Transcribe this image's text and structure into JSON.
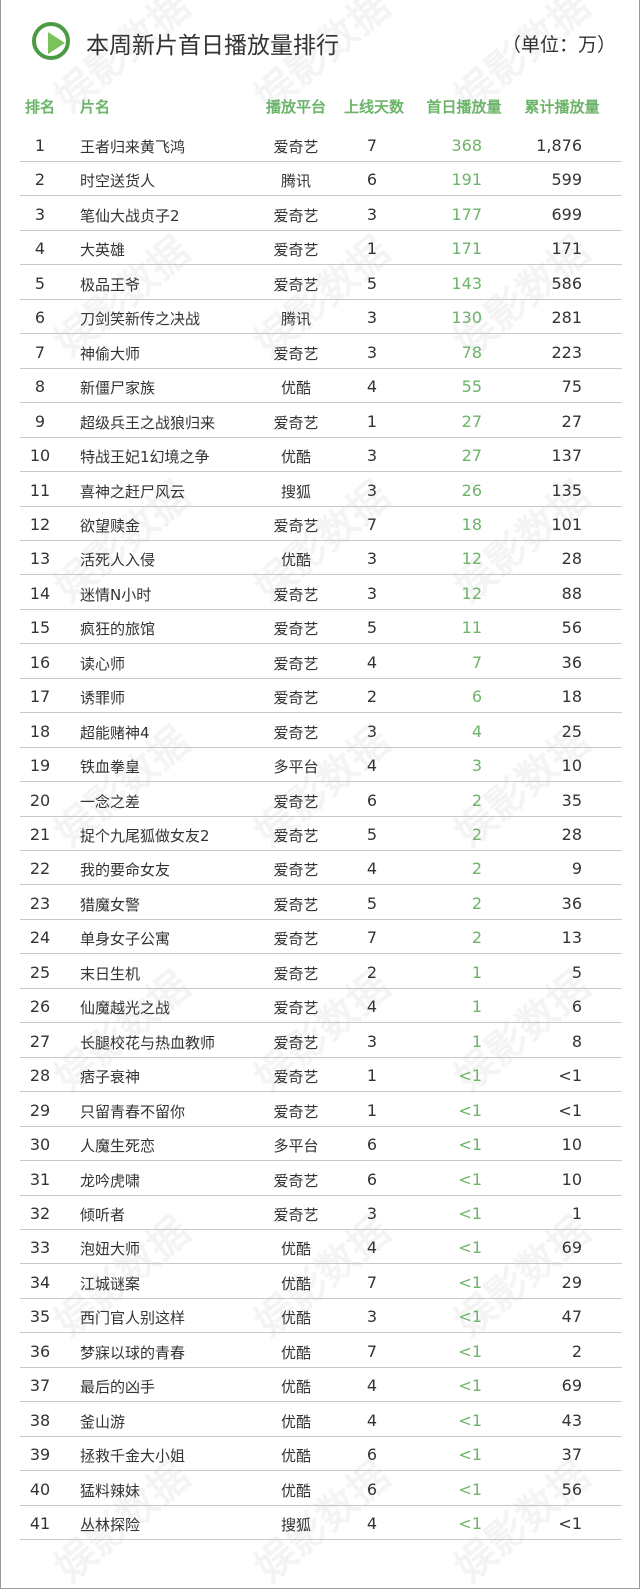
{
  "title": "本周新片首日播放量排行",
  "unit": "（单位：万）",
  "watermark": "娱影数据",
  "colors": {
    "accent": "#6cb46a",
    "icon": "#4c9a44"
  },
  "icon": "play-circle-icon",
  "headers": [
    "排名",
    "片名",
    "播放平台",
    "上线天数",
    "首日播放量",
    "累计播放量"
  ],
  "rows": [
    [
      "1",
      "王者归来黄飞鸿",
      "爱奇艺",
      "7",
      "368",
      "1,876"
    ],
    [
      "2",
      "时空送货人",
      "腾讯",
      "6",
      "191",
      "599"
    ],
    [
      "3",
      "笔仙大战贞子2",
      "爱奇艺",
      "3",
      "177",
      "699"
    ],
    [
      "4",
      "大英雄",
      "爱奇艺",
      "1",
      "171",
      "171"
    ],
    [
      "5",
      "极品王爷",
      "爱奇艺",
      "5",
      "143",
      "586"
    ],
    [
      "6",
      "刀剑笑新传之决战",
      "腾讯",
      "3",
      "130",
      "281"
    ],
    [
      "7",
      "神偷大师",
      "爱奇艺",
      "3",
      "78",
      "223"
    ],
    [
      "8",
      "新僵尸家族",
      "优酷",
      "4",
      "55",
      "75"
    ],
    [
      "9",
      "超级兵王之战狼归来",
      "爱奇艺",
      "1",
      "27",
      "27"
    ],
    [
      "10",
      "特战王妃1幻境之争",
      "优酷",
      "3",
      "27",
      "137"
    ],
    [
      "11",
      "喜神之赶尸风云",
      "搜狐",
      "3",
      "26",
      "135"
    ],
    [
      "12",
      "欲望赎金",
      "爱奇艺",
      "7",
      "18",
      "101"
    ],
    [
      "13",
      "活死人入侵",
      "优酷",
      "3",
      "12",
      "28"
    ],
    [
      "14",
      "迷情N小时",
      "爱奇艺",
      "3",
      "12",
      "88"
    ],
    [
      "15",
      "疯狂的旅馆",
      "爱奇艺",
      "5",
      "11",
      "56"
    ],
    [
      "16",
      "读心师",
      "爱奇艺",
      "4",
      "7",
      "36"
    ],
    [
      "17",
      "诱罪师",
      "爱奇艺",
      "2",
      "6",
      "18"
    ],
    [
      "18",
      "超能赌神4",
      "爱奇艺",
      "3",
      "4",
      "25"
    ],
    [
      "19",
      "铁血拳皇",
      "多平台",
      "4",
      "3",
      "10"
    ],
    [
      "20",
      "一念之差",
      "爱奇艺",
      "6",
      "2",
      "35"
    ],
    [
      "21",
      "捉个九尾狐做女友2",
      "爱奇艺",
      "5",
      "2",
      "28"
    ],
    [
      "22",
      "我的要命女友",
      "爱奇艺",
      "4",
      "2",
      "9"
    ],
    [
      "23",
      "猎魔女警",
      "爱奇艺",
      "5",
      "2",
      "36"
    ],
    [
      "24",
      "单身女子公寓",
      "爱奇艺",
      "7",
      "2",
      "13"
    ],
    [
      "25",
      "末日生机",
      "爱奇艺",
      "2",
      "1",
      "5"
    ],
    [
      "26",
      "仙魔越光之战",
      "爱奇艺",
      "4",
      "1",
      "6"
    ],
    [
      "27",
      "长腿校花与热血教师",
      "爱奇艺",
      "3",
      "1",
      "8"
    ],
    [
      "28",
      "痞子衰神",
      "爱奇艺",
      "1",
      "<1",
      "<1"
    ],
    [
      "29",
      "只留青春不留你",
      "爱奇艺",
      "1",
      "<1",
      "<1"
    ],
    [
      "30",
      "人魔生死恋",
      "多平台",
      "6",
      "<1",
      "10"
    ],
    [
      "31",
      "龙吟虎啸",
      "爱奇艺",
      "6",
      "<1",
      "10"
    ],
    [
      "32",
      "倾听者",
      "爱奇艺",
      "3",
      "<1",
      "1"
    ],
    [
      "33",
      "泡妞大师",
      "优酷",
      "4",
      "<1",
      "69"
    ],
    [
      "34",
      "江城谜案",
      "优酷",
      "7",
      "<1",
      "29"
    ],
    [
      "35",
      "西门官人别这样",
      "优酷",
      "3",
      "<1",
      "47"
    ],
    [
      "36",
      "梦寐以球的青春",
      "优酷",
      "7",
      "<1",
      "2"
    ],
    [
      "37",
      "最后的凶手",
      "优酷",
      "4",
      "<1",
      "69"
    ],
    [
      "38",
      "釜山游",
      "优酷",
      "4",
      "<1",
      "43"
    ],
    [
      "39",
      "拯救千金大小姐",
      "优酷",
      "6",
      "<1",
      "37"
    ],
    [
      "40",
      "猛料辣妹",
      "优酷",
      "6",
      "<1",
      "56"
    ],
    [
      "41",
      "丛林探险",
      "搜狐",
      "4",
      "<1",
      "<1"
    ]
  ]
}
